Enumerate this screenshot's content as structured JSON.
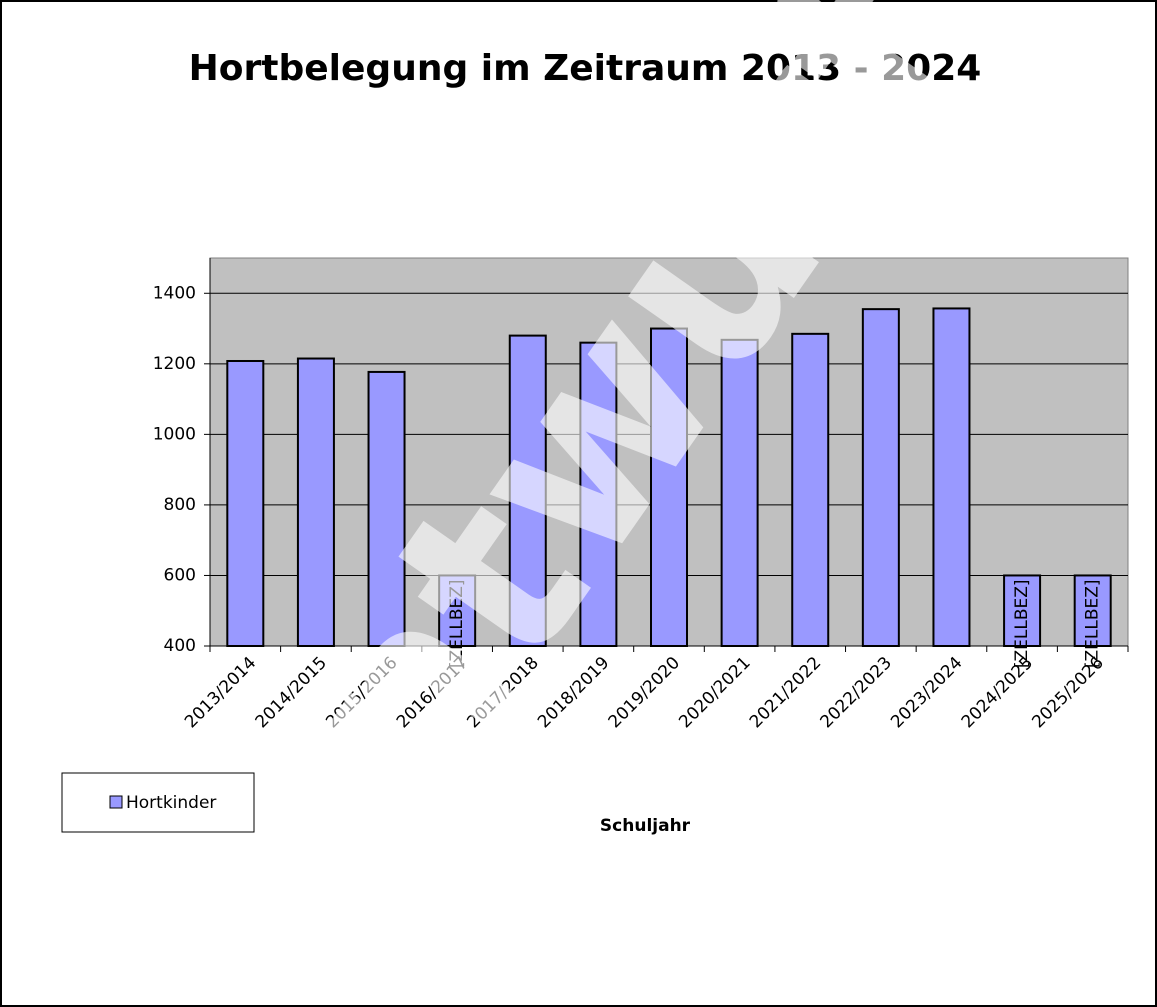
{
  "chart_data": {
    "type": "bar",
    "title": "Hortbelegung im Zeitraum 2013 - 2024",
    "x_label": "Schuljahr",
    "watermark": "Entwurf",
    "categories": [
      "2013/2014",
      "2014/2015",
      "2015/2016",
      "2016/2017",
      "2017/2018",
      "2018/2019",
      "2019/2020",
      "2020/2021",
      "2021/2022",
      "2022/2023",
      "2023/2024",
      "2024/2025",
      "2025/2026"
    ],
    "series": [
      {
        "name": "Hortkinder",
        "color": "#9999ff",
        "values": [
          1208,
          1215,
          1177,
          600,
          1280,
          1260,
          1300,
          1268,
          1285,
          1355,
          1357,
          600,
          600
        ],
        "value_labels": [
          null,
          null,
          null,
          "[ZELLBEZ]",
          null,
          null,
          null,
          null,
          null,
          null,
          null,
          "[ZELLBEZ]",
          "[ZELLBEZ]"
        ]
      }
    ],
    "ylim": [
      400,
      1500
    ],
    "yticks": [
      400,
      600,
      800,
      1000,
      1200,
      1400
    ],
    "grid": true,
    "plot_background": "#c0c0c0",
    "legend": "bottom-left"
  }
}
